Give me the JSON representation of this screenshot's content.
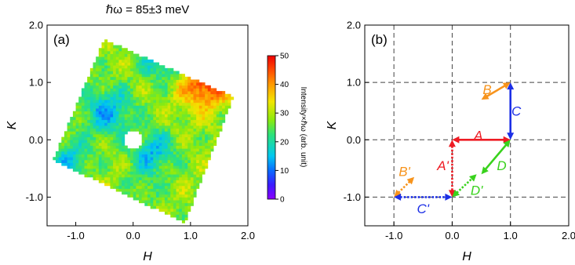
{
  "title": "ℏω = 85±3 meV",
  "colors": {
    "red": "#ee1c24",
    "orange": "#f7941d",
    "blue": "#1c2fe6",
    "green": "#39d21d",
    "grid": "#444444"
  },
  "chart_data": [
    {
      "type": "heatmap",
      "panel_label": "(a)",
      "xlabel": "H",
      "ylabel": "K",
      "xlim": [
        -1.5,
        2.0
      ],
      "ylim": [
        -1.5,
        2.0
      ],
      "xticks": [
        {
          "v": -1.0,
          "label": "-1.0"
        },
        {
          "v": 0.0,
          "label": "0.0"
        },
        {
          "v": 1.0,
          "label": "1.0"
        },
        {
          "v": 2.0,
          "label": "2.0"
        }
      ],
      "yticks": [
        {
          "v": -1.0,
          "label": "-1.0"
        },
        {
          "v": 0.0,
          "label": "0.0"
        },
        {
          "v": 1.0,
          "label": "1.0"
        },
        {
          "v": 2.0,
          "label": "2.0"
        }
      ],
      "colorbar": {
        "label": "Intensity×ℏω (arb. unit)",
        "range": [
          0,
          50
        ],
        "ticks": [
          {
            "v": 0,
            "label": "0"
          },
          {
            "v": 10,
            "label": "10"
          },
          {
            "v": 20,
            "label": "20"
          },
          {
            "v": 30,
            "label": "30"
          },
          {
            "v": 40,
            "label": "40"
          },
          {
            "v": 50,
            "label": "50"
          }
        ]
      },
      "coverage_corners": [
        [
          -0.5,
          1.75
        ],
        [
          1.75,
          0.75
        ],
        [
          0.9,
          -1.45
        ],
        [
          -1.4,
          -0.35
        ]
      ],
      "hole": {
        "center": [
          0.0,
          0.0
        ],
        "radius": 0.17
      },
      "features": [
        {
          "center": [
            1.25,
            1.0
          ],
          "value": 48,
          "width": 0.3
        },
        {
          "center": [
            0.6,
            1.5
          ],
          "value": 12,
          "width": 0.3
        },
        {
          "center": [
            -0.45,
            0.5
          ],
          "value": 14,
          "width": 0.3
        },
        {
          "center": [
            0.35,
            -0.2
          ],
          "value": 15,
          "width": 0.25
        },
        {
          "center": [
            -0.25,
            -1.25
          ],
          "value": 34,
          "width": 0.35
        },
        {
          "center": [
            0.1,
            -0.9
          ],
          "value": 22,
          "width": 0.3
        },
        {
          "center": [
            -1.1,
            -0.35
          ],
          "value": 16,
          "width": 0.25
        }
      ],
      "base_value": 28
    },
    {
      "type": "diagram",
      "panel_label": "(b)",
      "xlabel": "H",
      "ylabel": "K",
      "xlim": [
        -1.5,
        2.0
      ],
      "ylim": [
        -1.5,
        2.0
      ],
      "xticks": [
        {
          "v": -1.0,
          "label": "-1.0"
        },
        {
          "v": 0.0,
          "label": "0.0"
        },
        {
          "v": 1.0,
          "label": "1.0"
        },
        {
          "v": 2.0,
          "label": "2.0"
        }
      ],
      "yticks": [
        {
          "v": -1.0,
          "label": "-1.0"
        },
        {
          "v": 0.0,
          "label": "0.0"
        },
        {
          "v": 1.0,
          "label": "1.0"
        },
        {
          "v": 2.0,
          "label": "2.0"
        }
      ],
      "gridlines": [
        -1.0,
        0.0,
        1.0
      ],
      "vectors": [
        {
          "label": "A",
          "from": [
            0.0,
            0.0
          ],
          "to": [
            1.0,
            0.0
          ],
          "color": "red",
          "dashed": false,
          "label_at": [
            0.45,
            0.08
          ]
        },
        {
          "label": "A'",
          "from": [
            0.0,
            0.0
          ],
          "to": [
            0.0,
            -1.0
          ],
          "color": "red",
          "dashed": true,
          "label_at": [
            -0.16,
            -0.45
          ]
        },
        {
          "label": "B",
          "from": [
            0.5,
            0.7
          ],
          "to": [
            1.0,
            1.0
          ],
          "color": "orange",
          "dashed": false,
          "label_at": [
            0.6,
            0.88
          ]
        },
        {
          "label": "B'",
          "from": [
            -1.0,
            -1.0
          ],
          "to": [
            -0.65,
            -0.65
          ],
          "color": "orange",
          "dashed": true,
          "label_at": [
            -0.82,
            -0.55
          ]
        },
        {
          "label": "C",
          "from": [
            1.0,
            0.0
          ],
          "to": [
            1.0,
            1.0
          ],
          "color": "blue",
          "dashed": false,
          "label_at": [
            1.1,
            0.5
          ]
        },
        {
          "label": "C'",
          "from": [
            -1.0,
            -1.0
          ],
          "to": [
            0.0,
            -1.0
          ],
          "color": "blue",
          "dashed": true,
          "label_at": [
            -0.5,
            -1.2
          ]
        },
        {
          "label": "D",
          "from": [
            0.5,
            -0.6
          ],
          "to": [
            1.0,
            0.0
          ],
          "color": "green",
          "dashed": false,
          "label_at": [
            0.85,
            -0.45
          ]
        },
        {
          "label": "D'",
          "from": [
            0.0,
            -1.0
          ],
          "to": [
            0.42,
            -0.6
          ],
          "color": "green",
          "dashed": true,
          "label_at": [
            0.42,
            -0.88
          ]
        }
      ]
    }
  ]
}
